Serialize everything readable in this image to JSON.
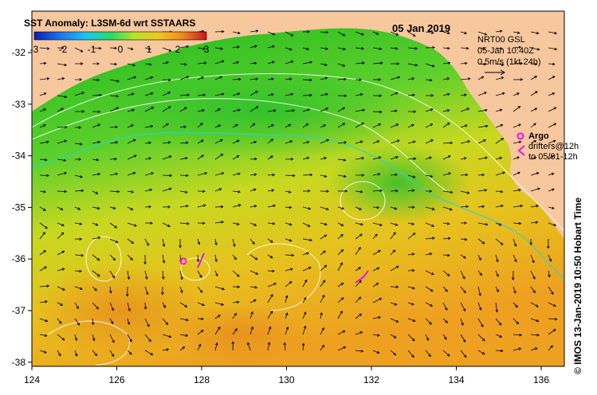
{
  "map": {
    "title": "SST Anomaly: L3SM-6d wrt SSTAARS",
    "date": "05 Jan 2019",
    "colorbar": {
      "ticks": [
        "-3",
        "-2",
        "-1",
        "0",
        "1",
        "2",
        "3"
      ],
      "colors": [
        "#0a1eb4",
        "#1e78f0",
        "#14c8f0",
        "#28dc64",
        "#b4e628",
        "#f0c81e",
        "#f08c1e",
        "#c8141e"
      ]
    },
    "current_info": {
      "line1": "NRT00 GSL",
      "line2": "05-Jan 10:40Z",
      "line3": "0.5m/s (1kt 24h)"
    },
    "argo": {
      "label": "Argo",
      "drifters": "drifters@12h",
      "until": "to 05/01-12h"
    },
    "x_ticks": [
      "124",
      "126",
      "128",
      "130",
      "132",
      "134",
      "136"
    ],
    "y_ticks": [
      "-32",
      "-33",
      "-34",
      "-35",
      "-36",
      "-37",
      "-38"
    ],
    "side_label": "© IMOS 13-Jan-2019 10:50 Hobart Time",
    "colors": {
      "land": "#f7c79e",
      "ocean_green": "#3cc83c",
      "ocean_yellow": "#e6d21e",
      "ocean_orange": "#f0a01e",
      "argo_magenta": "#e614e6",
      "shelf_cyan": "#14dcdc"
    }
  }
}
